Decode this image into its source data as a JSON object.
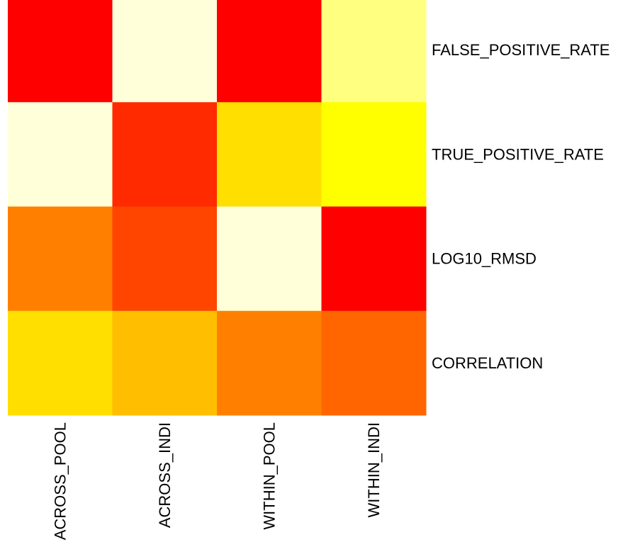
{
  "chart_data": {
    "type": "heatmap",
    "columns": [
      "ACROSS_POOL",
      "ACROSS_INDI",
      "WITHIN_POOL",
      "WITHIN_INDI"
    ],
    "rows": [
      "FALSE_POSITIVE_RATE",
      "TRUE_POSITIVE_RATE",
      "LOG10_RMSD",
      "CORRELATION"
    ],
    "colorscale": [
      "#ff0000",
      "#ff4500",
      "#ff6600",
      "#ff8000",
      "#ffbf00",
      "#ffdf00",
      "#ffff00",
      "#ffff80",
      "#ffffd9"
    ],
    "cell_colors": [
      [
        "#ff0000",
        "#ffffd9",
        "#ff0000",
        "#ffff80"
      ],
      [
        "#ffffd9",
        "#ff2a00",
        "#ffdf00",
        "#ffff00"
      ],
      [
        "#ff8000",
        "#ff4500",
        "#ffffd9",
        "#ff0000"
      ],
      [
        "#ffdf00",
        "#ffbf00",
        "#ff8000",
        "#ff6600"
      ]
    ]
  }
}
